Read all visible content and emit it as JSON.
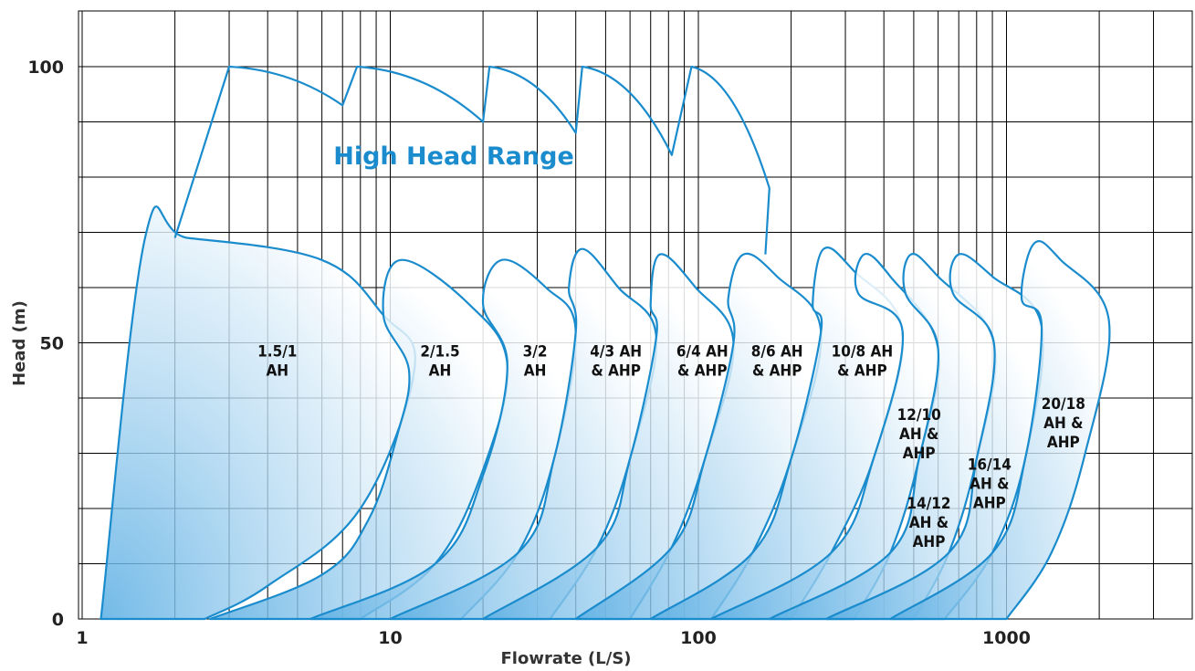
{
  "chart_data": {
    "type": "area",
    "xlabel": "Flowrate (L/S)",
    "ylabel": "Head (m)",
    "x_scale": "log",
    "xlim": [
      1,
      3000
    ],
    "ylim": [
      0,
      110
    ],
    "x_ticks": [
      {
        "value": 1,
        "label": "1"
      },
      {
        "value": 10,
        "label": "10"
      },
      {
        "value": 100,
        "label": "100"
      },
      {
        "value": 1000,
        "label": "1000"
      }
    ],
    "y_ticks": [
      {
        "value": 0,
        "label": "0"
      },
      {
        "value": 50,
        "label": "50"
      },
      {
        "value": 100,
        "label": "100"
      }
    ],
    "grid": true,
    "range_label": "High Head Range",
    "colors": {
      "outline": "#1a8ccd",
      "fill": "#8cc5ea",
      "grid": "#000000"
    },
    "high_head_envelope": [
      [
        2,
        69
      ],
      [
        3,
        100
      ],
      [
        7,
        93
      ],
      [
        7.8,
        100
      ],
      [
        20,
        90
      ],
      [
        21,
        100
      ],
      [
        40,
        88
      ],
      [
        42,
        100
      ],
      [
        82,
        84
      ],
      [
        95,
        100
      ],
      [
        170,
        78
      ],
      [
        165,
        66
      ]
    ],
    "series": [
      {
        "name": "1.5/1 AH",
        "label_lines": [
          "1.5/1",
          "AH"
        ],
        "label_at": [
          4.3,
          47.5
        ],
        "outline": [
          [
            1.15,
            0
          ],
          [
            1.6,
            69
          ],
          [
            2.2,
            69
          ],
          [
            6,
            65
          ],
          [
            9.5,
            55
          ],
          [
            12,
            45.5
          ],
          [
            8,
            20
          ],
          [
            4,
            6
          ],
          [
            2.5,
            0
          ]
        ]
      },
      {
        "name": "2/1.5 AH",
        "label_lines": [
          "2/1.5",
          "AH"
        ],
        "label_at": [
          14.5,
          47.5
        ],
        "outline": [
          [
            2.6,
            0
          ],
          [
            6,
            8
          ],
          [
            8.5,
            18
          ],
          [
            10.5,
            33
          ],
          [
            11.5,
            45
          ],
          [
            9.5,
            55
          ],
          [
            10.8,
            65
          ],
          [
            18,
            57
          ],
          [
            24,
            46
          ],
          [
            20,
            27
          ],
          [
            14,
            10
          ],
          [
            8,
            0
          ]
        ]
      },
      {
        "name": "3/2 AH",
        "label_lines": [
          "3/2",
          "AH"
        ],
        "label_at": [
          29.5,
          47.5
        ],
        "outline": [
          [
            5.5,
            0
          ],
          [
            14,
            10
          ],
          [
            20,
            26
          ],
          [
            24,
            46
          ],
          [
            20,
            57
          ],
          [
            23,
            65
          ],
          [
            32,
            60
          ],
          [
            40,
            52
          ],
          [
            34,
            29
          ],
          [
            26,
            12
          ],
          [
            17,
            0
          ]
        ]
      },
      {
        "name": "4/3 AH & AHP",
        "label_lines": [
          "4/3 AH",
          "& AHP"
        ],
        "label_at": [
          54,
          47.5
        ],
        "outline": [
          [
            10,
            0
          ],
          [
            26,
            12
          ],
          [
            34,
            29
          ],
          [
            40,
            52
          ],
          [
            38,
            60
          ],
          [
            42,
            67
          ],
          [
            55,
            60
          ],
          [
            73,
            51
          ],
          [
            60,
            29
          ],
          [
            47,
            13
          ],
          [
            33,
            0
          ]
        ]
      },
      {
        "name": "6/4 AH & AHP",
        "label_lines": [
          "6/4 AH",
          "& AHP"
        ],
        "label_at": [
          103,
          47.5
        ],
        "outline": [
          [
            20,
            0
          ],
          [
            47,
            13
          ],
          [
            60,
            29
          ],
          [
            73,
            51
          ],
          [
            70,
            57
          ],
          [
            75,
            66
          ],
          [
            98,
            60
          ],
          [
            130,
            50
          ],
          [
            105,
            29
          ],
          [
            82,
            13
          ],
          [
            60,
            0
          ]
        ]
      },
      {
        "name": "8/6 AH & AHP",
        "label_lines": [
          "8/6 AH",
          "& AHP"
        ],
        "label_at": [
          180,
          47.5
        ],
        "outline": [
          [
            40,
            0
          ],
          [
            82,
            13
          ],
          [
            105,
            29
          ],
          [
            130,
            50
          ],
          [
            125,
            58
          ],
          [
            140,
            66
          ],
          [
            180,
            62
          ],
          [
            250,
            52
          ],
          [
            200,
            29
          ],
          [
            150,
            12
          ],
          [
            110,
            0
          ]
        ]
      },
      {
        "name": "10/8 AH & AHP",
        "label_lines": [
          "10/8 AH",
          "& AHP"
        ],
        "label_at": [
          340,
          47.5
        ],
        "outline": [
          [
            70,
            0
          ],
          [
            150,
            12
          ],
          [
            200,
            29
          ],
          [
            250,
            52
          ],
          [
            235,
            57
          ],
          [
            255,
            67
          ],
          [
            320,
            63
          ],
          [
            460,
            52
          ],
          [
            370,
            29
          ],
          [
            270,
            12
          ],
          [
            200,
            0
          ]
        ]
      },
      {
        "name": "12/10 AH & AHP",
        "label_lines": [
          "12/10",
          "AH &",
          "AHP"
        ],
        "label_at": [
          520,
          36
        ],
        "outline": [
          [
            110,
            0
          ],
          [
            270,
            12
          ],
          [
            370,
            29
          ],
          [
            460,
            52
          ],
          [
            330,
            59
          ],
          [
            345,
            66
          ],
          [
            420,
            62
          ],
          [
            600,
            49
          ],
          [
            520,
            29
          ],
          [
            420,
            12
          ],
          [
            320,
            0
          ]
        ]
      },
      {
        "name": "14/12 AH & AHP",
        "label_lines": [
          "14/12",
          "AH &",
          "AHP"
        ],
        "label_at": [
          560,
          20
        ],
        "outline": [
          [
            170,
            0
          ],
          [
            420,
            12
          ],
          [
            520,
            29
          ],
          [
            600,
            49
          ],
          [
            470,
            59
          ],
          [
            490,
            66
          ],
          [
            600,
            62
          ],
          [
            910,
            50
          ],
          [
            800,
            29
          ],
          [
            650,
            12
          ],
          [
            500,
            0
          ]
        ]
      },
      {
        "name": "16/14 AH & AHP",
        "label_lines": [
          "16/14",
          "AH &",
          "AHP"
        ],
        "label_at": [
          880,
          27
        ],
        "outline": [
          [
            260,
            0
          ],
          [
            650,
            12
          ],
          [
            800,
            29
          ],
          [
            910,
            50
          ],
          [
            670,
            59
          ],
          [
            700,
            66
          ],
          [
            900,
            62
          ],
          [
            1300,
            53
          ],
          [
            1150,
            29
          ],
          [
            900,
            12
          ],
          [
            630,
            0
          ]
        ]
      },
      {
        "name": "20/18 AH & AHP",
        "label_lines": [
          "20/18",
          "AH &",
          "AHP"
        ],
        "label_at": [
          1530,
          38
        ],
        "outline": [
          [
            420,
            0
          ],
          [
            900,
            12
          ],
          [
            1150,
            29
          ],
          [
            1300,
            53
          ],
          [
            1120,
            58
          ],
          [
            1230,
            68
          ],
          [
            1500,
            65
          ],
          [
            2150,
            54
          ],
          [
            1800,
            30
          ],
          [
            1400,
            12
          ],
          [
            1000,
            0
          ]
        ]
      }
    ]
  }
}
